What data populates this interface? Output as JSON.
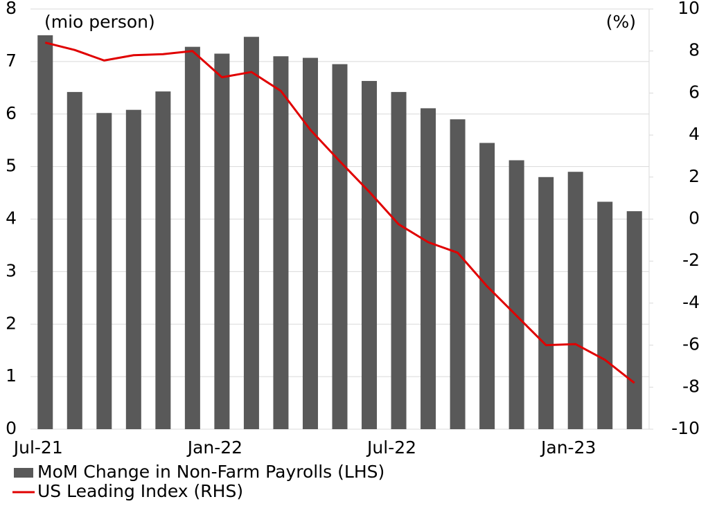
{
  "chart_data": {
    "type": "bar_line",
    "left_unit": "(mio person)",
    "right_unit": "(%)",
    "categories": [
      "Jul-21",
      null,
      null,
      null,
      null,
      null,
      "Jan-22",
      null,
      null,
      null,
      null,
      null,
      "Jul-22",
      null,
      null,
      null,
      null,
      null,
      "Jan-23",
      null,
      null
    ],
    "series": [
      {
        "name": "MoM Change in Non-Farm Payrolls (LHS)",
        "color": "#595959",
        "kind": "bar",
        "values": [
          7.5,
          6.42,
          6.02,
          6.08,
          6.43,
          7.28,
          7.15,
          7.47,
          7.1,
          7.07,
          6.95,
          6.63,
          6.42,
          6.11,
          5.9,
          5.45,
          5.12,
          4.8,
          4.9,
          4.33,
          4.15
        ]
      },
      {
        "name": "US Leading Index (RHS)",
        "color": "#e00000",
        "kind": "line",
        "axis": "y2",
        "values": [
          8.4,
          8.05,
          7.55,
          7.8,
          7.85,
          8.0,
          6.75,
          7.0,
          6.1,
          4.25,
          2.75,
          1.3,
          -0.25,
          -1.1,
          -1.6,
          -3.2,
          -4.6,
          -6.0,
          -5.95,
          -6.7,
          -7.8
        ]
      }
    ],
    "ylim": [
      0,
      8
    ],
    "yticks": [
      0,
      1,
      2,
      3,
      4,
      5,
      6,
      7,
      8
    ],
    "y2lim": [
      -10,
      10
    ],
    "y2ticks": [
      -10,
      -8,
      -6,
      -4,
      -2,
      0,
      2,
      4,
      6,
      8,
      10
    ],
    "y2_negative_color": "#e00000",
    "grid": true
  }
}
